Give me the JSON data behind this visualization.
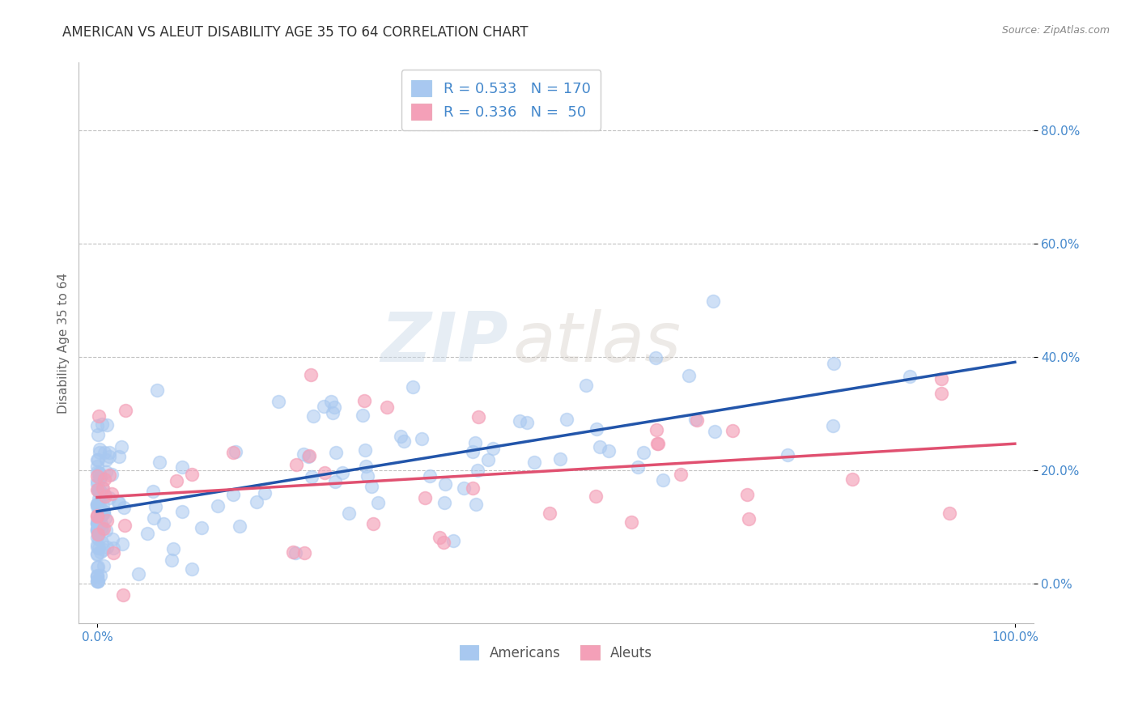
{
  "title": "AMERICAN VS ALEUT DISABILITY AGE 35 TO 64 CORRELATION CHART",
  "source": "Source: ZipAtlas.com",
  "ylabel": "Disability Age 35 to 64",
  "xtick_labels": [
    "0.0%",
    "100.0%"
  ],
  "ytick_labels": [
    "0.0%",
    "20.0%",
    "40.0%",
    "60.0%",
    "80.0%"
  ],
  "ytick_vals": [
    0.0,
    0.2,
    0.4,
    0.6,
    0.8
  ],
  "american_color": "#a8c8f0",
  "aleut_color": "#f4a0b8",
  "american_R": 0.533,
  "american_N": 170,
  "aleut_R": 0.336,
  "aleut_N": 50,
  "trend_american_color": "#2255aa",
  "trend_aleut_color": "#e05070",
  "ytick_color": "#4488cc",
  "legend_label_american": "Americans",
  "legend_label_aleut": "Aleuts",
  "background_color": "#ffffff",
  "grid_color": "#bbbbbb",
  "watermark_zip": "ZIP",
  "watermark_atlas": "atlas",
  "title_fontsize": 12,
  "axis_label_fontsize": 11,
  "tick_fontsize": 11,
  "legend_fontsize": 13
}
